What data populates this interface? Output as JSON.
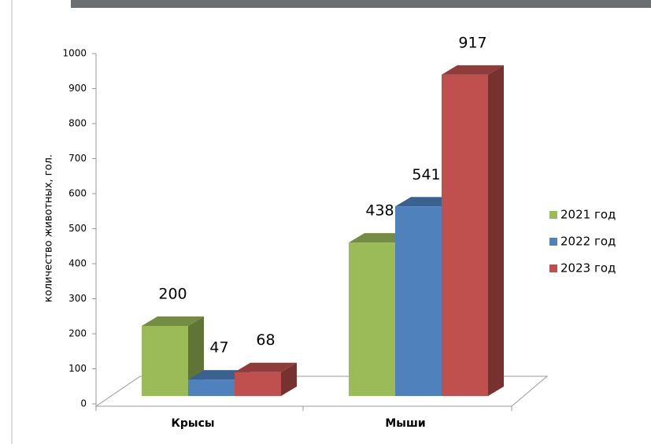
{
  "chart_data": {
    "type": "bar3d",
    "y_label": "количество животных, гол.",
    "categories": [
      "Крысы",
      "Мыши"
    ],
    "series": [
      {
        "name": "2021 год",
        "color": "#9bbb59",
        "values": [
          200,
          438
        ]
      },
      {
        "name": "2022 год",
        "color": "#4f81bd",
        "values": [
          47,
          541
        ]
      },
      {
        "name": "2023 год",
        "color": "#c0504d",
        "values": [
          68,
          917
        ]
      }
    ],
    "ylim": [
      0,
      1000
    ],
    "yticks": [
      0,
      100,
      200,
      300,
      400,
      500,
      600,
      700,
      800,
      900,
      1000
    ],
    "legend": "right"
  }
}
